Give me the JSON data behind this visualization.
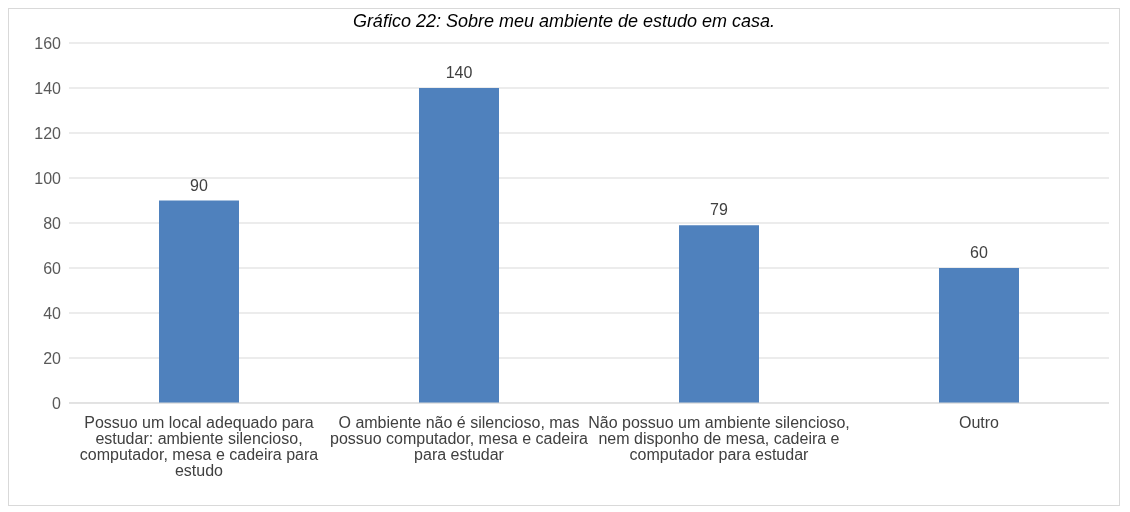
{
  "chart_data": {
    "type": "bar",
    "title": "Gráfico 22: Sobre meu ambiente de estudo em casa.",
    "categories": [
      "Possuo um local adequado para estudar: ambiente silencioso, computador, mesa e cadeira para estudo",
      "O ambiente não é silencioso, mas possuo computador, mesa e cadeira para estudar",
      "Não possuo um ambiente silencioso, nem disponho de mesa, cadeira e computador para estudar",
      "Outro"
    ],
    "values": [
      90,
      140,
      79,
      60
    ],
    "color": "#4f81bd",
    "ylim": [
      0,
      160
    ],
    "yticks": [
      0,
      20,
      40,
      60,
      80,
      100,
      120,
      140,
      160
    ],
    "grid": "y",
    "data_labels": true
  }
}
